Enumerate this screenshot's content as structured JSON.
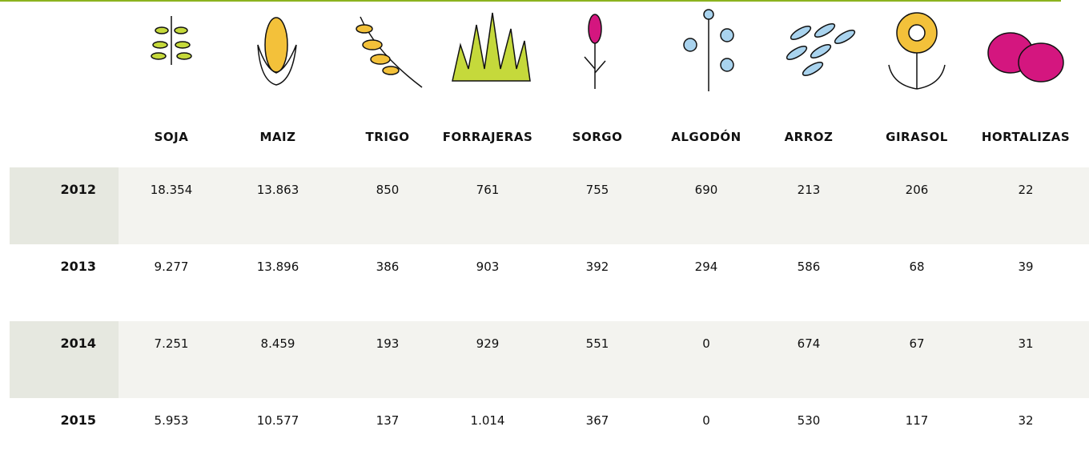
{
  "table": {
    "columns": [
      "SOJA",
      "MAIZ",
      "TRIGO",
      "FORRAJERAS",
      "SORGO",
      "ALGODÓN",
      "ARROZ",
      "GIRASOL",
      "HORTALIZAS"
    ],
    "rows": [
      {
        "year": "2012",
        "values": [
          "18.354",
          "13.863",
          "850",
          "761",
          "755",
          "690",
          "213",
          "206",
          "22"
        ]
      },
      {
        "year": "2013",
        "values": [
          "9.277",
          "13.896",
          "386",
          "903",
          "392",
          "294",
          "586",
          "68",
          "39"
        ]
      },
      {
        "year": "2014",
        "values": [
          "7.251",
          "8.459",
          "193",
          "929",
          "551",
          "0",
          "674",
          "67",
          "31"
        ]
      },
      {
        "year": "2015",
        "values": [
          "5.953",
          "10.577",
          "137",
          "1.014",
          "367",
          "0",
          "530",
          "117",
          "32"
        ]
      }
    ]
  }
}
